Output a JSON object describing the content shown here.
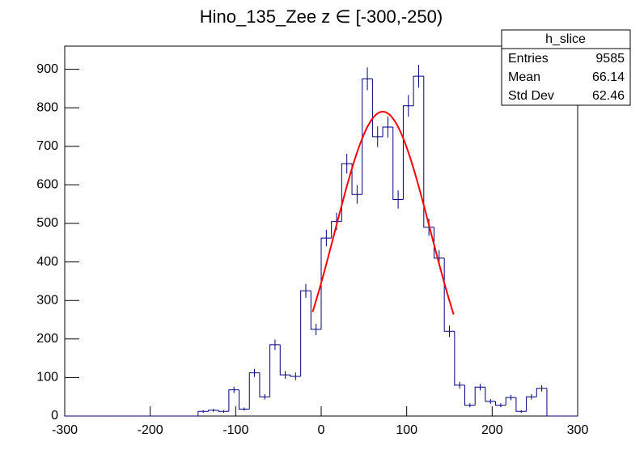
{
  "chart_data": {
    "type": "histogram",
    "title": "Hino_135_Zee z  ∈ [-300,-250)",
    "bins": [
      -300,
      -288,
      -276,
      -264,
      -252,
      -240,
      -228,
      -216,
      -204,
      -192,
      -180,
      -168,
      -156,
      -144,
      -132,
      -120,
      -108,
      -96,
      -84,
      -72,
      -60,
      -48,
      -36,
      -24,
      -12,
      0,
      12,
      24,
      36,
      48,
      60,
      72,
      84,
      96,
      108,
      120,
      132,
      144,
      156,
      168,
      180,
      192,
      204,
      216,
      228,
      240,
      252,
      264,
      276,
      288,
      300
    ],
    "values": [
      0,
      0,
      0,
      0,
      0,
      0,
      0,
      0,
      0,
      0,
      0,
      0,
      0,
      12,
      15,
      12,
      68,
      18,
      112,
      50,
      185,
      107,
      103,
      325,
      225,
      462,
      505,
      655,
      575,
      875,
      725,
      750,
      562,
      805,
      882,
      490,
      410,
      220,
      80,
      28,
      75,
      38,
      28,
      48,
      12,
      50,
      72,
      0,
      0,
      0
    ],
    "errors": [
      0,
      0,
      0,
      0,
      0,
      0,
      0,
      0,
      0,
      0,
      0,
      0,
      0,
      3.5,
      3.9,
      3.5,
      8.2,
      4.2,
      10.6,
      7.1,
      13.6,
      10.3,
      10.1,
      18,
      15,
      21.5,
      22.5,
      25.6,
      24,
      29.6,
      26.9,
      27.4,
      23.7,
      28.4,
      29.7,
      22.1,
      20.2,
      14.8,
      8.9,
      5.3,
      8.7,
      6.2,
      5.3,
      6.9,
      3.5,
      7.1,
      8.5,
      0,
      0,
      0
    ],
    "color": "#000080",
    "fit": {
      "constant": 790,
      "mean": 72,
      "sigma": 56,
      "range": [
        -10,
        155
      ],
      "color": "#ff0000"
    },
    "xlim": [
      -300,
      300
    ],
    "xticks": [
      -300,
      -200,
      -100,
      0,
      100,
      200,
      300
    ],
    "ylim": [
      0,
      960
    ],
    "yticks": [
      0,
      100,
      200,
      300,
      400,
      500,
      600,
      700,
      800,
      900
    ],
    "stats": {
      "name": "h_slice",
      "rows": [
        [
          "Entries",
          "9585"
        ],
        [
          "Mean",
          "66.14"
        ],
        [
          "Std Dev",
          "62.46"
        ]
      ]
    }
  }
}
